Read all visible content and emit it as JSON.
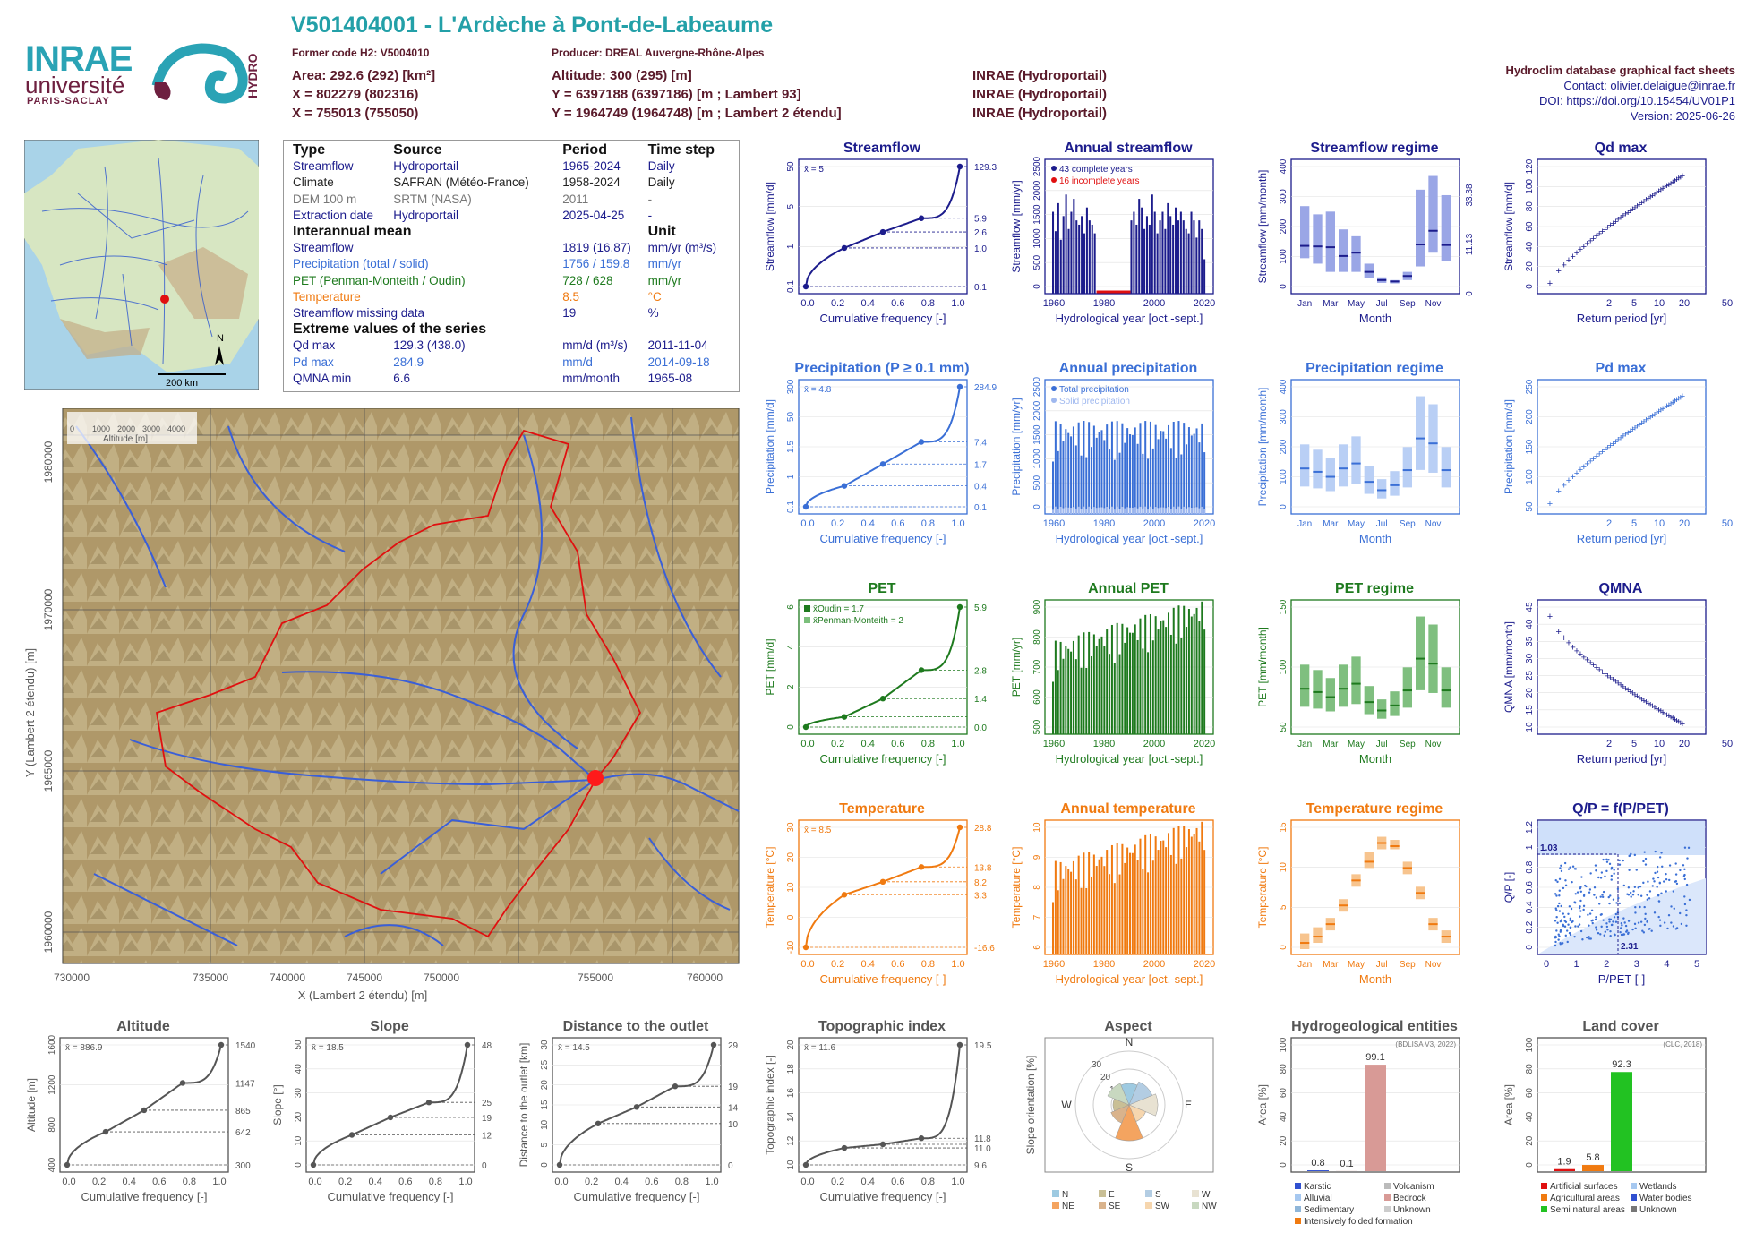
{
  "header": {
    "title": "V501404001 - L'Ardèche à Pont-de-Labeaume",
    "former_code": "Former code H2: V5004010",
    "producer": "Producer: DREAL Auvergne-Rhône-Alpes",
    "area": "Area: 292.6 (292) [km²]",
    "altitude": "Altitude: 300 (295) [m]",
    "x93": "X = 802279 (802316)",
    "y93": "Y = 6397188 (6397186) [m ; Lambert 93]",
    "x2": "X = 755013 (755050)",
    "y2": "Y = 1964749 (1964748) [m ; Lambert 2 étendu]",
    "src1": "INRAE (Hydroportail)",
    "src2": "INRAE (Hydroportail)",
    "src3": "INRAE (Hydroportail)"
  },
  "logos": {
    "inrae": "INRAE",
    "universite": "université",
    "paris_saclay": "PARIS-SACLAY",
    "hydro": "HYDRO"
  },
  "contact": {
    "db": "Hydroclim database graphical fact sheets",
    "contact": "Contact: olivier.delaigue@inrae.fr",
    "doi": "DOI: https://doi.org/10.15454/UV01P1",
    "version": "Version: 2025-06-26"
  },
  "info_table": {
    "headers": [
      "Type",
      "Source",
      "Period",
      "Time step"
    ],
    "rows": [
      [
        "Streamflow",
        "Hydroportail",
        "1965-2024",
        "Daily"
      ],
      [
        "Climate",
        "SAFRAN (Météo-France)",
        "1958-2024",
        "Daily"
      ],
      [
        "DEM 100 m",
        "SRTM (NASA)",
        "2011",
        "-"
      ],
      [
        "Extraction date",
        "Hydroportail",
        "2025-04-25",
        "-"
      ]
    ],
    "interannual_title": "Interannual mean",
    "unit_title": "Unit",
    "interannual": [
      [
        "Streamflow",
        "1819 (16.87)",
        "mm/yr (m³/s)"
      ],
      [
        "Precipitation (total / solid)",
        "1756 / 159.8",
        "mm/yr"
      ],
      [
        "PET (Penman-Monteith / Oudin)",
        "728 / 628",
        "mm/yr"
      ],
      [
        "Temperature",
        "8.5",
        "°C"
      ],
      [
        "Streamflow missing data",
        "19",
        "%"
      ]
    ],
    "extreme_title": "Extreme values of the series",
    "extremes": [
      [
        "Qd max",
        "129.3 (438.0)",
        "mm/d (m³/s)",
        "2011-11-04"
      ],
      [
        "Pd max",
        "284.9",
        "mm/d",
        "2014-09-18"
      ],
      [
        "QMNA min",
        "6.6",
        "mm/month",
        "1965-08"
      ]
    ]
  },
  "colors": {
    "flow": "#1c1c8c",
    "precip": "#3a6fd6",
    "pet": "#1e7a1e",
    "temp": "#f07a10",
    "grey": "#555555",
    "basin": "#e01010",
    "river": "#3a5fd8"
  },
  "map": {
    "scale": "200 km",
    "north": "N",
    "legend_title": "Altitude [m]",
    "legend_ticks": [
      "0",
      "1000",
      "2000",
      "3000",
      "4000"
    ],
    "xlabel": "X (Lambert 2 étendu) [m]",
    "ylabel": "Y (Lambert 2 étendu) [m]",
    "xticks": [
      "730000",
      "735000",
      "740000",
      "745000",
      "750000",
      "755000",
      "760000"
    ],
    "yticks": [
      "1960000",
      "1965000",
      "1970000",
      "1975000",
      "1980000"
    ]
  },
  "chart_data": [
    {
      "id": "streamflow_fdc",
      "type": "line",
      "title": "Streamflow",
      "xlabel": "Cumulative frequency [-]",
      "ylabel": "Streamflow [mm/d]",
      "mean_label": "x̄ = 5",
      "x": [
        0,
        0.25,
        0.5,
        0.75,
        1
      ],
      "y": [
        0.1,
        1.0,
        2.6,
        5.9,
        129.3
      ],
      "right_labels": [
        "129.3",
        "5.9",
        "2.6",
        "1.0",
        "0.1"
      ],
      "yticks": [
        "0.1",
        "1",
        "5",
        "50"
      ]
    },
    {
      "id": "annual_streamflow",
      "type": "bar",
      "title": "Annual streamflow",
      "xlabel": "Hydrological year [oct.-sept.]",
      "ylabel": "Streamflow [mm/yr]",
      "legend": [
        "43 complete years",
        "16 incomplete years"
      ],
      "xticks": [
        "1960",
        "1980",
        "2000",
        "2020"
      ],
      "yticks": [
        "0",
        "500",
        "1000",
        "1500",
        "2000",
        "2500"
      ],
      "ylim": [
        0,
        2700
      ],
      "values": [
        1900,
        1450,
        2100,
        1250,
        1800,
        2300,
        1500,
        1900,
        2200,
        1700,
        1600,
        1800,
        1400,
        2000,
        1700,
        1600,
        1400,
        0,
        0,
        0,
        0,
        0,
        0,
        0,
        0,
        0,
        0,
        0,
        0,
        0,
        1700,
        1900,
        1600,
        2200,
        2000,
        1500,
        1800,
        1600,
        2300,
        1900,
        1400,
        1700,
        1900,
        1500,
        2100,
        1800,
        1600,
        2000,
        1700,
        1900,
        1700,
        1500,
        1400,
        1900,
        1700,
        1300,
        1700,
        1500,
        800
      ],
      "incomplete_range": [
        1979,
        1993
      ]
    },
    {
      "id": "streamflow_regime",
      "type": "box",
      "title": "Streamflow regime",
      "xlabel": "Month",
      "ylabel": "Streamflow [mm/month]",
      "right_labels": [
        "33.38",
        "11.13",
        "0"
      ],
      "categories": [
        "Jan",
        "Feb",
        "Mar",
        "Apr",
        "May",
        "Jun",
        "Jul",
        "Aug",
        "Sep",
        "Oct",
        "Nov",
        "Dec"
      ],
      "median": [
        155,
        153,
        150,
        118,
        130,
        60,
        30,
        25,
        45,
        160,
        210,
        158
      ],
      "q1": [
        110,
        90,
        60,
        60,
        60,
        38,
        20,
        18,
        30,
        80,
        130,
        100
      ],
      "q3": [
        300,
        270,
        280,
        215,
        190,
        90,
        40,
        30,
        60,
        360,
        410,
        340
      ],
      "yticks": [
        "0",
        "100",
        "200",
        "300",
        "400"
      ]
    },
    {
      "id": "qd_max",
      "type": "scatter",
      "title": "Qd max",
      "xlabel": "Return period [yr]",
      "ylabel": "Streamflow [mm/d]",
      "xticks": [
        "2",
        "5",
        "10",
        "20",
        "50"
      ],
      "yticks": [
        "0",
        "20",
        "40",
        "60",
        "80",
        "100",
        "120"
      ]
    },
    {
      "id": "precip_fdc",
      "type": "line",
      "title": "Precipitation (P ≥ 0.1 mm)",
      "xlabel": "Cumulative frequency [-]",
      "ylabel": "Precipitation [mm/d]",
      "mean_label": "x̄ = 4.8",
      "x": [
        0,
        0.25,
        0.5,
        0.75,
        1
      ],
      "y": [
        0.1,
        0.4,
        1.7,
        7.4,
        284.9
      ],
      "right_labels": [
        "284.9",
        "7.4",
        "1.7",
        "0.4",
        "0.1"
      ],
      "yticks": [
        "0.1",
        "1",
        "1.5",
        "50",
        "300"
      ]
    },
    {
      "id": "annual_precip",
      "type": "bar",
      "title": "Annual precipitation",
      "xlabel": "Hydrological year [oct.-sept.]",
      "ylabel": "Precipitation [mm/yr]",
      "legend": [
        "Total precipitation",
        "Solid precipitation"
      ],
      "xticks": [
        "1960",
        "1980",
        "2000",
        "2020"
      ],
      "yticks": [
        "0",
        "500",
        "1000",
        "1500",
        "2000",
        "2500"
      ]
    },
    {
      "id": "precip_regime",
      "type": "box",
      "title": "Precipitation regime",
      "xlabel": "Month",
      "ylabel": "Precipitation [mm/month]",
      "categories": [
        "Jan",
        "Feb",
        "Mar",
        "Apr",
        "May",
        "Jun",
        "Jul",
        "Aug",
        "Sep",
        "Oct",
        "Nov",
        "Dec"
      ],
      "yticks": [
        "0",
        "100",
        "200",
        "300",
        "400"
      ]
    },
    {
      "id": "pd_max",
      "type": "scatter",
      "title": "Pd max",
      "xlabel": "Return period [yr]",
      "ylabel": "Precipitation [mm/d]",
      "xticks": [
        "2",
        "5",
        "10",
        "20",
        "50"
      ],
      "yticks": [
        "50",
        "100",
        "150",
        "200",
        "250"
      ]
    },
    {
      "id": "pet_fdc",
      "type": "line",
      "title": "PET",
      "xlabel": "Cumulative frequency [-]",
      "ylabel": "PET [mm/d]",
      "legend": [
        "x̄Oudin = 1.7",
        "x̄Penman-Monteith = 2"
      ],
      "x": [
        0,
        0.25,
        0.5,
        0.75,
        1
      ],
      "y": [
        0.0,
        0.5,
        1.4,
        2.8,
        5.9
      ],
      "right_labels": [
        "5.9",
        "2.8",
        "1.4",
        "0.0"
      ],
      "yticks": [
        "0",
        "2",
        "4",
        "6"
      ]
    },
    {
      "id": "annual_pet",
      "type": "bar",
      "title": "Annual PET",
      "xlabel": "Hydrological year [oct.-sept.]",
      "ylabel": "PET [mm/yr]",
      "xticks": [
        "1960",
        "1980",
        "2000",
        "2020"
      ],
      "yticks": [
        "500",
        "600",
        "700",
        "800",
        "900"
      ]
    },
    {
      "id": "pet_regime",
      "type": "box",
      "title": "PET regime",
      "xlabel": "Month",
      "ylabel": "PET [mm/month]",
      "categories": [
        "Jan",
        "Feb",
        "Mar",
        "Apr",
        "May",
        "Jun",
        "Jul",
        "Aug",
        "Sep",
        "Oct",
        "Nov",
        "Dec"
      ],
      "yticks": [
        "50",
        "100",
        "150"
      ]
    },
    {
      "id": "qmna",
      "type": "scatter",
      "title": "QMNA",
      "xlabel": "Return period [yr]",
      "ylabel": "QMNA [mm/month]",
      "xticks": [
        "2",
        "5",
        "10",
        "20",
        "50"
      ],
      "yticks": [
        "10",
        "15",
        "20",
        "25",
        "30",
        "35",
        "40",
        "45"
      ]
    },
    {
      "id": "temp_fdc",
      "type": "line",
      "title": "Temperature",
      "xlabel": "Cumulative frequency [-]",
      "ylabel": "Temperature [°C]",
      "mean_label": "x̄ = 8.5",
      "x": [
        0,
        0.25,
        0.5,
        0.75,
        1
      ],
      "y": [
        -16.6,
        3.3,
        8.2,
        13.8,
        28.8
      ],
      "right_labels": [
        "28.8",
        "13.8",
        "8.2",
        "3.3",
        "-16.6"
      ],
      "yticks": [
        "-10",
        "0",
        "10",
        "20",
        "30"
      ]
    },
    {
      "id": "annual_temp",
      "type": "bar",
      "title": "Annual temperature",
      "xlabel": "Hydrological year [oct.-sept.]",
      "ylabel": "Temperature [°C]",
      "xticks": [
        "1960",
        "1980",
        "2000",
        "2020"
      ],
      "yticks": [
        "6",
        "7",
        "8",
        "9",
        "10"
      ]
    },
    {
      "id": "temp_regime",
      "type": "box",
      "title": "Temperature regime",
      "xlabel": "Month",
      "ylabel": "Temperature [°C]",
      "categories": [
        "Jan",
        "Feb",
        "Mar",
        "Apr",
        "May",
        "Jun",
        "Jul",
        "Aug",
        "Sep",
        "Oct",
        "Nov",
        "Dec"
      ],
      "median": [
        1,
        2,
        4,
        7,
        11,
        14,
        17,
        16.5,
        13,
        9,
        4,
        2
      ],
      "q1": [
        0,
        1,
        3,
        6,
        10,
        13,
        16,
        16,
        12,
        8,
        3,
        1
      ],
      "q3": [
        2.5,
        3.5,
        5,
        8,
        12,
        15.5,
        18,
        17.5,
        14,
        10,
        5,
        3
      ],
      "yticks": [
        "0",
        "5",
        "10",
        "15"
      ]
    },
    {
      "id": "qp_ppet",
      "type": "scatter",
      "title": "Q/P = f(P/PET)",
      "xlabel": "P/PET [-]",
      "ylabel": "Q/P [-]",
      "annotations": [
        "1.03",
        "2.31"
      ],
      "xticks": [
        "0",
        "1",
        "2",
        "3",
        "4",
        "5"
      ],
      "yticks": [
        "0",
        "0.2",
        "0.4",
        "0.6",
        "0.8",
        "1",
        "1.2"
      ]
    },
    {
      "id": "altitude_cdf",
      "type": "line",
      "title": "Altitude",
      "xlabel": "Cumulative frequency [-]",
      "ylabel": "Altitude [m]",
      "mean_label": "x̄ = 886.9",
      "x": [
        0,
        0.25,
        0.5,
        0.75,
        1
      ],
      "y": [
        300,
        642,
        865,
        1147,
        1540
      ],
      "right_labels": [
        "1540",
        "1147",
        "865",
        "642",
        "300"
      ],
      "yticks": [
        "400",
        "800",
        "1200",
        "1600"
      ]
    },
    {
      "id": "slope_cdf",
      "type": "line",
      "title": "Slope",
      "xlabel": "Cumulative frequency [-]",
      "ylabel": "Slope [°]",
      "mean_label": "x̄ = 18.5",
      "x": [
        0,
        0.25,
        0.5,
        0.75,
        1
      ],
      "y": [
        0,
        12,
        19,
        25,
        48
      ],
      "right_labels": [
        "48",
        "25",
        "19",
        "12",
        "0"
      ],
      "yticks": [
        "0",
        "10",
        "20",
        "30",
        "40",
        "50"
      ]
    },
    {
      "id": "distance_cdf",
      "type": "line",
      "title": "Distance to the outlet",
      "xlabel": "Cumulative frequency [-]",
      "ylabel": "Distance to the outlet [km]",
      "mean_label": "x̄ = 14.5",
      "x": [
        0,
        0.25,
        0.5,
        0.75,
        1
      ],
      "y": [
        0,
        10,
        14,
        19,
        29
      ],
      "right_labels": [
        "29",
        "19",
        "14",
        "10",
        "0"
      ],
      "yticks": [
        "0",
        "5",
        "10",
        "15",
        "20",
        "25",
        "30"
      ]
    },
    {
      "id": "topo_cdf",
      "type": "line",
      "title": "Topographic index",
      "xlabel": "Cumulative frequency [-]",
      "ylabel": "Topographic index [-]",
      "mean_label": "x̄ = 11.6",
      "x": [
        0,
        0.25,
        0.5,
        0.75,
        1
      ],
      "y": [
        9.6,
        11.0,
        11.3,
        11.8,
        19.5
      ],
      "right_labels": [
        "19.5",
        "11.8",
        "11.0",
        "9.6"
      ],
      "yticks": [
        "10",
        "12",
        "14",
        "16",
        "18",
        "20"
      ]
    },
    {
      "id": "aspect",
      "type": "pie",
      "title": "Aspect",
      "ylabel": "Slope orientation [%]",
      "directions": [
        "N",
        "E",
        "S",
        "W"
      ],
      "rings": [
        "10",
        "20",
        "30"
      ],
      "legend": [
        "N",
        "E",
        "S",
        "W",
        "NE",
        "SE",
        "SW",
        "NW"
      ]
    },
    {
      "id": "hydrogeology",
      "type": "bar",
      "title": "Hydrogeological entities",
      "ylabel": "Area [%]",
      "note": "(BDLISA V3, 2022)",
      "values": [
        0.8,
        0.1,
        99.1
      ],
      "value_labels": [
        "0.8",
        "0.1",
        "99.1"
      ],
      "legend": [
        "Karstic",
        "Volcanism",
        "Alluvial",
        "Bedrock",
        "Sedimentary",
        "Unknown",
        "Intensively folded formation"
      ],
      "yticks": [
        "0",
        "20",
        "40",
        "60",
        "80",
        "100"
      ]
    },
    {
      "id": "land_cover",
      "type": "bar",
      "title": "Land cover",
      "ylabel": "Area [%]",
      "note": "(CLC, 2018)",
      "values": [
        1.9,
        5.8,
        92.3
      ],
      "value_labels": [
        "1.9",
        "5.8",
        "92.3"
      ],
      "legend": [
        "Artificial surfaces",
        "Wetlands",
        "Agricultural areas",
        "Water bodies",
        "Semi natural areas",
        "Unknown"
      ],
      "yticks": [
        "0",
        "20",
        "40",
        "60",
        "80",
        "100"
      ]
    }
  ]
}
